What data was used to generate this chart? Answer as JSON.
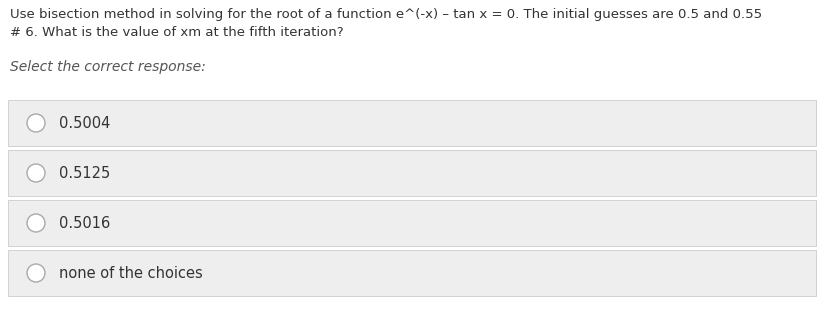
{
  "background_color": "#ffffff",
  "question_text_line1": "Use bisection method in solving for the root of a function e^(-x) – tan x = 0. The initial guesses are 0.5 and 0.55",
  "question_text_line2": "# 6. What is the value of xm at the fifth iteration?",
  "prompt_text": "Select the correct response:",
  "choices": [
    "0.5004",
    "0.5125",
    "0.5016",
    "none of the choices"
  ],
  "choice_bg_color": "#eeeeee",
  "choice_border_color": "#cccccc",
  "text_color": "#333333",
  "prompt_color": "#555555",
  "circle_edge_color": "#aaaaaa",
  "circle_face_color": "#ffffff",
  "question_fontsize": 9.5,
  "prompt_fontsize": 10,
  "choice_fontsize": 10.5,
  "fig_width": 8.24,
  "fig_height": 3.14,
  "dpi": 100
}
